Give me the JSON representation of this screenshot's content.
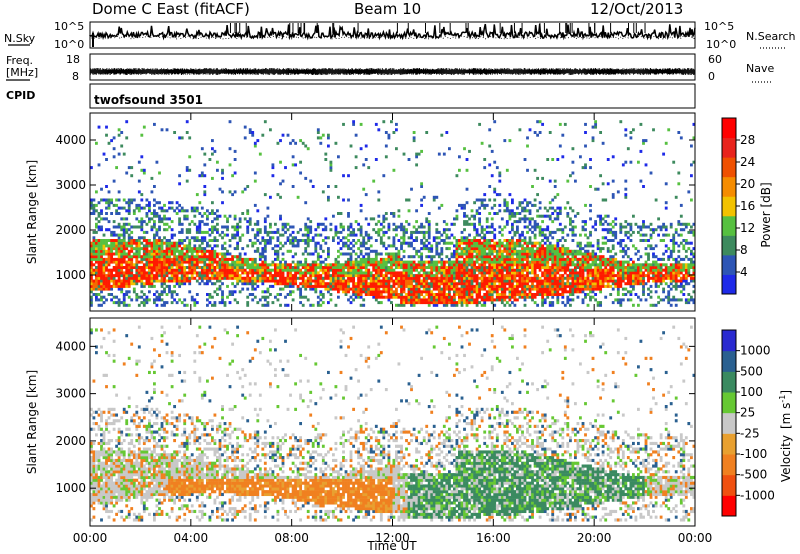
{
  "header": {
    "title": "Dome C East (fitACF)",
    "beam": "Beam 10",
    "date": "12/Oct/2013"
  },
  "panels": {
    "nsky_label": "N.Sky",
    "nsky_tick_top": "10^5",
    "nsky_tick_bottom": "10^0",
    "nsearch_label": "N.Search",
    "nsearch_tick_top": "10^5",
    "nsearch_tick_bottom": "10^0",
    "freq_label_1": "Freq.",
    "freq_label_2": "[MHz]",
    "freq_tick_top": "18",
    "freq_tick_bottom": "8",
    "nave_label": "Nave",
    "nave_tick_top": "60",
    "nave_tick_bottom": "0",
    "cpid_label": "CPID",
    "cpid_value": "twofsound 3501"
  },
  "chart_data": [
    {
      "type": "heatmap",
      "name": "power",
      "ylabel": "Slant Range [km]",
      "ylim": [
        200,
        4600
      ],
      "yticks": [
        "1000",
        "2000",
        "3000",
        "4000"
      ],
      "xlim": [
        0,
        24
      ],
      "colorbar_label": "Power [dB]",
      "colorbar_ticks": [
        "4",
        "8",
        "12",
        "16",
        "20",
        "24",
        "28"
      ],
      "colors": [
        "#1e2ae8",
        "#2d55b5",
        "#3d8a5e",
        "#56c040",
        "#f2c200",
        "#f58c00",
        "#ef5000",
        "#e8231c",
        "#ff0000"
      ]
    },
    {
      "type": "heatmap",
      "name": "velocity",
      "ylabel": "Slant Range [km]",
      "ylim": [
        200,
        4600
      ],
      "yticks": [
        "1000",
        "2000",
        "3000",
        "4000"
      ],
      "xlim": [
        0,
        24
      ],
      "xticks": [
        "00:00",
        "04:00",
        "08:00",
        "12:00",
        "16:00",
        "20:00",
        "00:00"
      ],
      "xlabel": "Time UT",
      "colorbar_label_main": "Velocity",
      "colorbar_label_unit": "[m s",
      "colorbar_label_exp": "-1",
      "colorbar_label_close": "]",
      "colorbar_ticks": [
        "1000",
        "500",
        "100",
        "25",
        "-25",
        "-100",
        "-500",
        "-1000"
      ],
      "colors": [
        "#2a2ad0",
        "#2a6090",
        "#3a8a60",
        "#66c833",
        "#c8c8c8",
        "#e8a030",
        "#f08020",
        "#f05010",
        "#ff0000"
      ]
    }
  ]
}
